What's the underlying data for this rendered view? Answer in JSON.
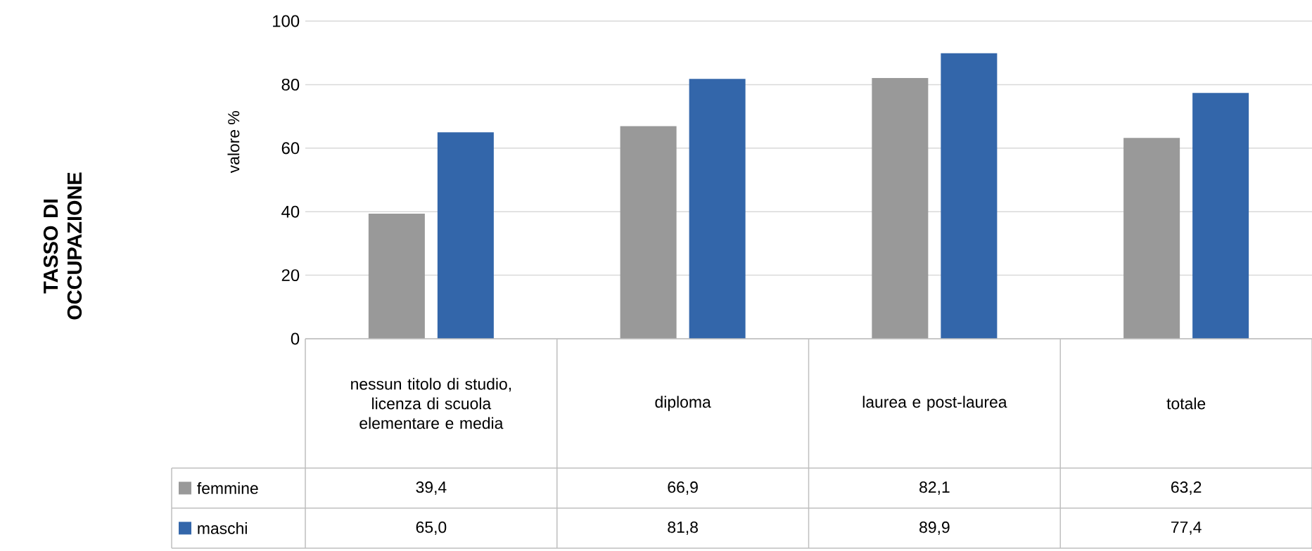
{
  "chart_data": {
    "type": "bar",
    "title": "TASSO DI OCCUPAZIONE",
    "ylabel": "valore %",
    "categories": [
      "nessun titolo di studio, licenza di scuola elementare e media",
      "diploma",
      "laurea e post-laurea",
      "totale"
    ],
    "series": [
      {
        "name": "femmine",
        "color": "#999999",
        "values": [
          39.4,
          66.9,
          82.1,
          63.2
        ],
        "value_labels": [
          "39,4",
          "66,9",
          "82,1",
          "63,2"
        ]
      },
      {
        "name": "maschi",
        "color": "#3366aa",
        "values": [
          65.0,
          81.8,
          89.9,
          77.4
        ],
        "value_labels": [
          "65,0",
          "81,8",
          "89,9",
          "77,4"
        ]
      }
    ],
    "ylim": [
      0,
      100
    ],
    "yticks": [
      0,
      20,
      40,
      60,
      80,
      100
    ],
    "grid": "y",
    "legend": "bottom"
  }
}
